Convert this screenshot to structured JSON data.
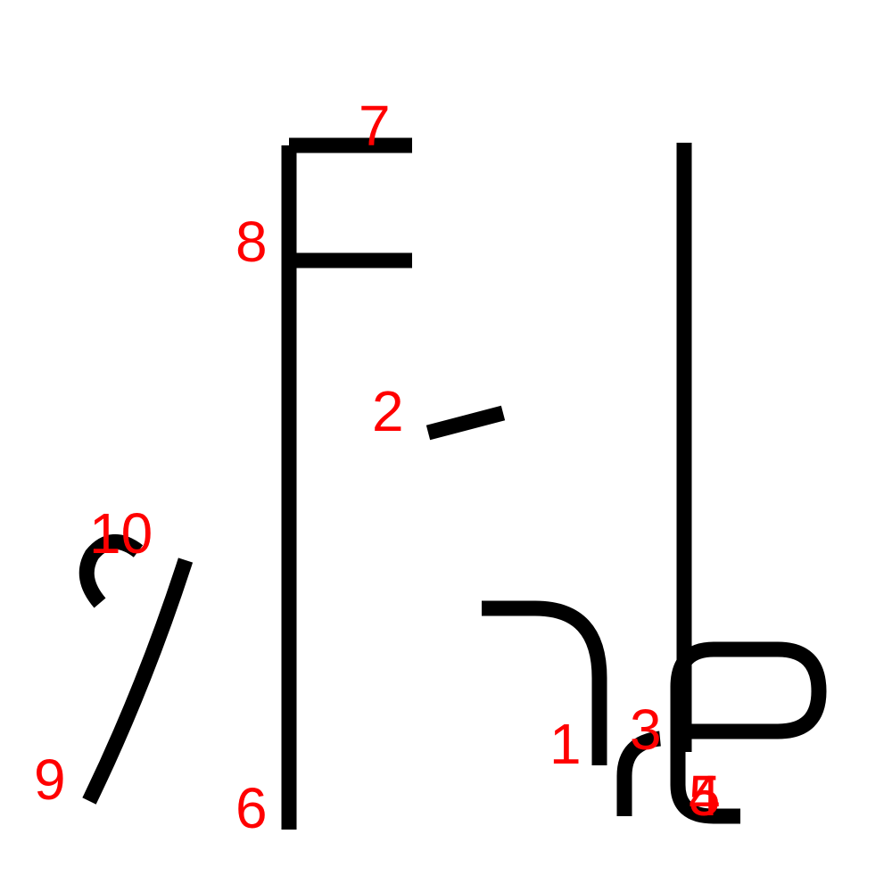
{
  "colors": {
    "background": "#ffffff",
    "stroke": "#000000",
    "label": "#ff0000"
  },
  "strokes": [
    {
      "id": "s1",
      "label": "1"
    },
    {
      "id": "s2",
      "label": "2"
    },
    {
      "id": "s3",
      "label": "3"
    },
    {
      "id": "s4",
      "label": "4"
    },
    {
      "id": "s5",
      "label": "5"
    },
    {
      "id": "s6",
      "label": "6"
    },
    {
      "id": "s7",
      "label": "7"
    },
    {
      "id": "s8",
      "label": "8"
    },
    {
      "id": "s9",
      "label": "9"
    },
    {
      "id": "s10",
      "label": "10"
    }
  ]
}
